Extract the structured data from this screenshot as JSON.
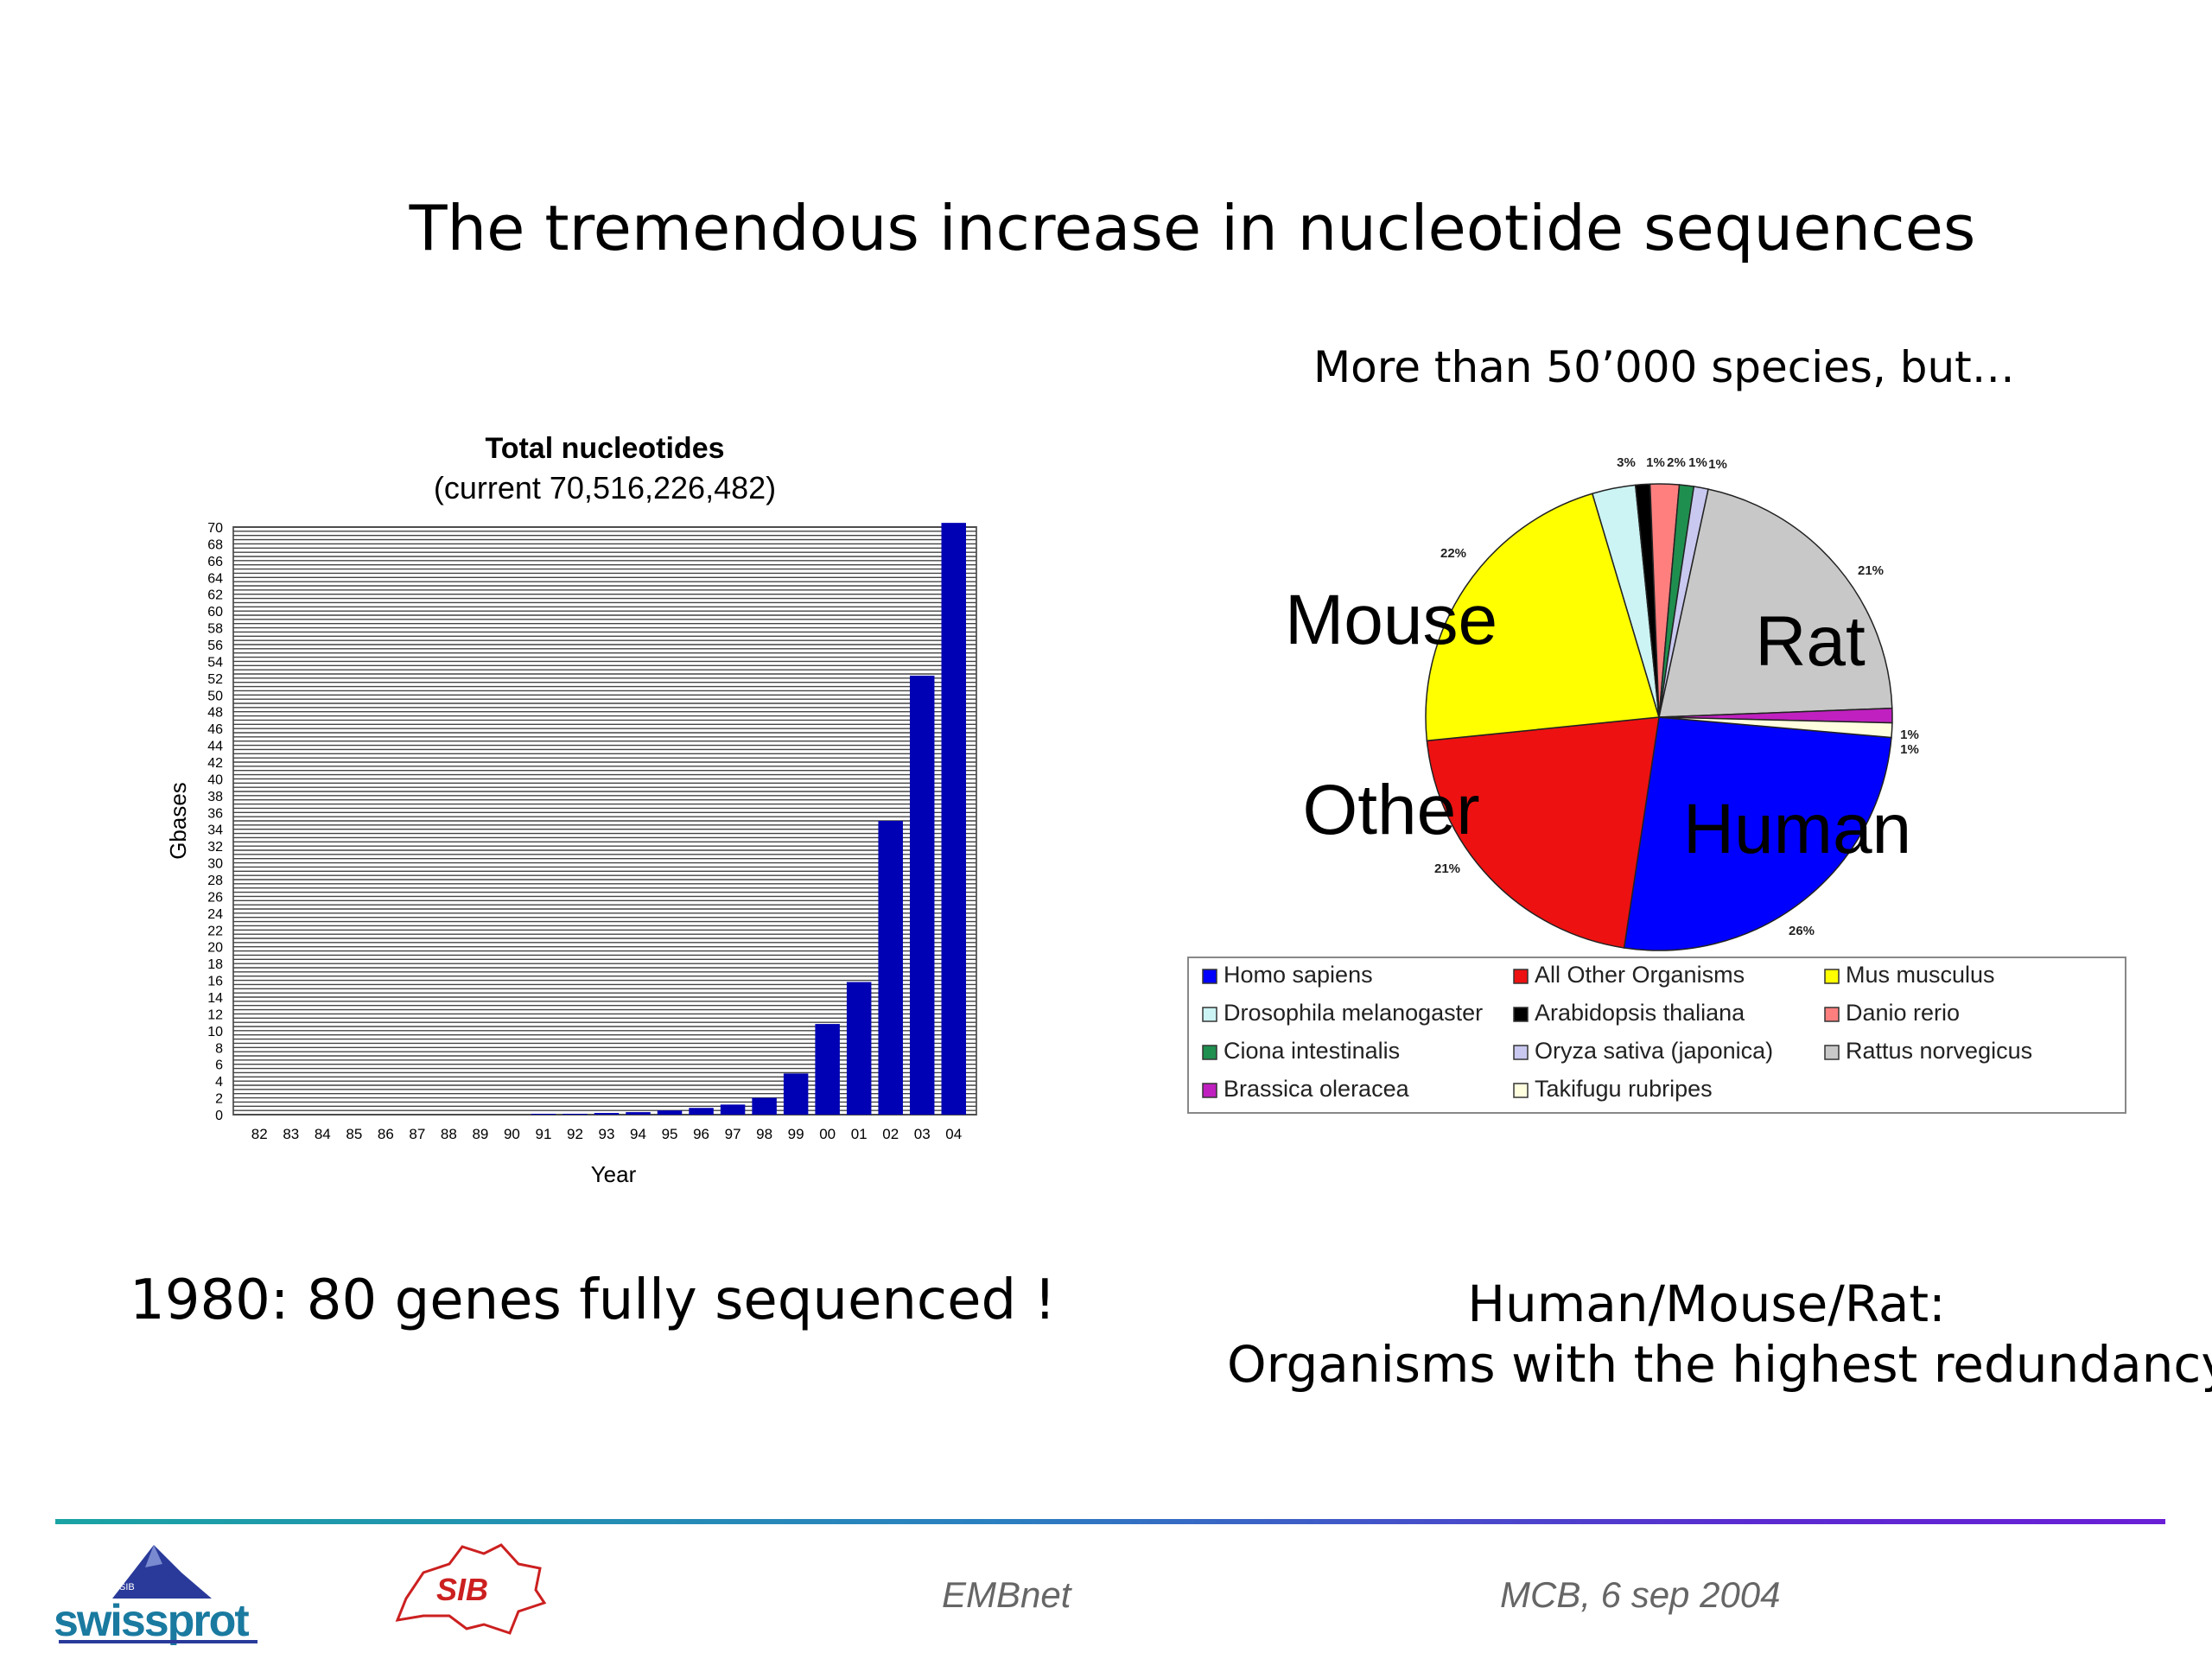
{
  "slide": {
    "title": "The tremendous increase in nucleotide sequences",
    "pie_caption": "More than 50’000 species, but…",
    "left_caption": "1980: 80 genes fully sequenced !",
    "right_caption_line1": "Human/Mouse/Rat:",
    "right_caption_line2": "Organisms with the highest redundancy !",
    "footer_left": "EMBnet",
    "footer_right": "MCB, 6 sep 2004",
    "logos": {
      "swissprot_text": "swissprot",
      "swissprot_small": "SIB",
      "sib_text": "SIB"
    }
  },
  "chart_data": [
    {
      "type": "bar",
      "title": "Total nucleotides",
      "subtitle": "(current 70,516,226,482)",
      "xlabel": "Year",
      "ylabel": "Gbases",
      "ylim": [
        0,
        70
      ],
      "yticks": [
        0,
        2,
        4,
        6,
        8,
        10,
        12,
        14,
        16,
        18,
        20,
        22,
        24,
        26,
        28,
        30,
        32,
        34,
        36,
        38,
        40,
        42,
        44,
        46,
        48,
        50,
        52,
        54,
        56,
        58,
        60,
        62,
        64,
        66,
        68,
        70
      ],
      "grid": true,
      "color": "#0000b4",
      "categories": [
        "82",
        "83",
        "84",
        "85",
        "86",
        "87",
        "88",
        "89",
        "90",
        "91",
        "92",
        "93",
        "94",
        "95",
        "96",
        "97",
        "98",
        "99",
        "00",
        "01",
        "02",
        "03",
        "04"
      ],
      "values": [
        0,
        0,
        0,
        0,
        0,
        0,
        0,
        0,
        0,
        0.1,
        0.1,
        0.2,
        0.3,
        0.5,
        0.8,
        1.2,
        2.0,
        4.9,
        10.8,
        15.8,
        35,
        52.3,
        70.5
      ]
    },
    {
      "type": "pie",
      "labels": [
        "Mouse",
        "Rat",
        "Other",
        "Human"
      ],
      "legend_position": "bottom",
      "slices": [
        {
          "name": "Homo sapiens",
          "value": 26,
          "label": "26%",
          "color": "#0000ff"
        },
        {
          "name": "All Other Organisms",
          "value": 21,
          "label": "21%",
          "color": "#ee1111"
        },
        {
          "name": "Mus musculus",
          "value": 22,
          "label": "22%",
          "color": "#ffff00"
        },
        {
          "name": "Drosophila melanogaster",
          "value": 3,
          "label": "3%",
          "color": "#ccf4f4"
        },
        {
          "name": "Arabidopsis thaliana",
          "value": 1,
          "label": "1%",
          "color": "#000000"
        },
        {
          "name": "Danio rerio",
          "value": 2,
          "label": "2%",
          "color": "#ff7f7f"
        },
        {
          "name": "Ciona intestinalis",
          "value": 1,
          "label": "1%",
          "color": "#1f8f4f"
        },
        {
          "name": "Oryza sativa (japonica)",
          "value": 1,
          "label": "1%",
          "color": "#c8c8f0"
        },
        {
          "name": "Rattus norvegicus",
          "value": 21,
          "label": "21%",
          "color": "#c8c8c8"
        },
        {
          "name": "Brassica oleracea",
          "value": 1,
          "label": "1%",
          "color": "#c020c0"
        },
        {
          "name": "Takifugu rubripes",
          "value": 1,
          "label": "1%",
          "color": "#ffffe0"
        }
      ]
    }
  ]
}
